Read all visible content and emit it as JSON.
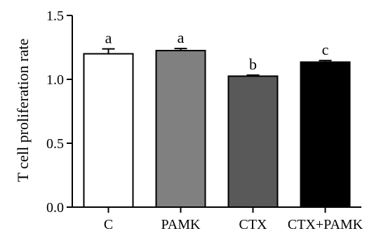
{
  "chart_data": {
    "type": "bar",
    "title": "",
    "xlabel": "",
    "ylabel": "T cell proliferation rate",
    "ylim": [
      0.0,
      1.5
    ],
    "yticks": [
      "0.0",
      "0.5",
      "1.0",
      "1.5"
    ],
    "grid": false,
    "categories": [
      "C",
      "PAMK",
      "CTX",
      "CTX+PAMK"
    ],
    "values": [
      1.2,
      1.225,
      1.025,
      1.135
    ],
    "errors": [
      0.038,
      0.016,
      0.008,
      0.012
    ],
    "significance_letters": [
      "a",
      "a",
      "b",
      "c"
    ],
    "bar_colors": [
      "#ffffff",
      "#808080",
      "#595959",
      "#000000"
    ]
  }
}
